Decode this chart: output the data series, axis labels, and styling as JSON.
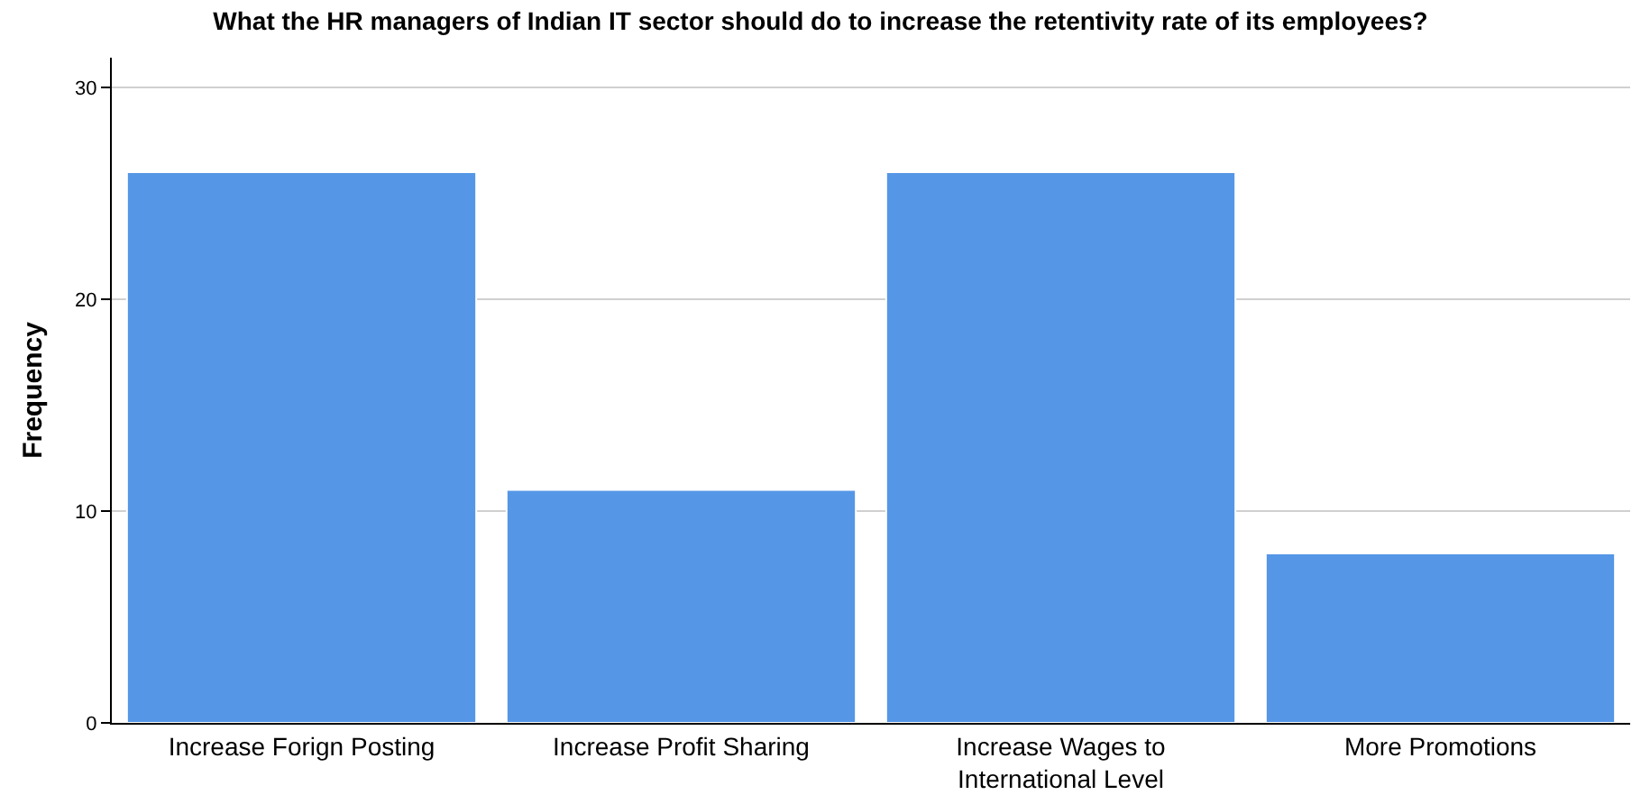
{
  "chart_data": {
    "type": "bar",
    "title": "What the HR managers of Indian IT sector should do to increase the retentivity rate of its employees?",
    "ylabel": "Frequency",
    "categories": [
      "Increase Forign Posting",
      "Increase Profit Sharing",
      "Increase Wages to International Level",
      "More Promotions"
    ],
    "values": [
      26,
      11,
      26,
      8
    ],
    "color": "#5596e6",
    "ylim": [
      0,
      31.4
    ],
    "yticks": [
      0,
      10,
      20,
      30
    ],
    "grid": "y"
  }
}
